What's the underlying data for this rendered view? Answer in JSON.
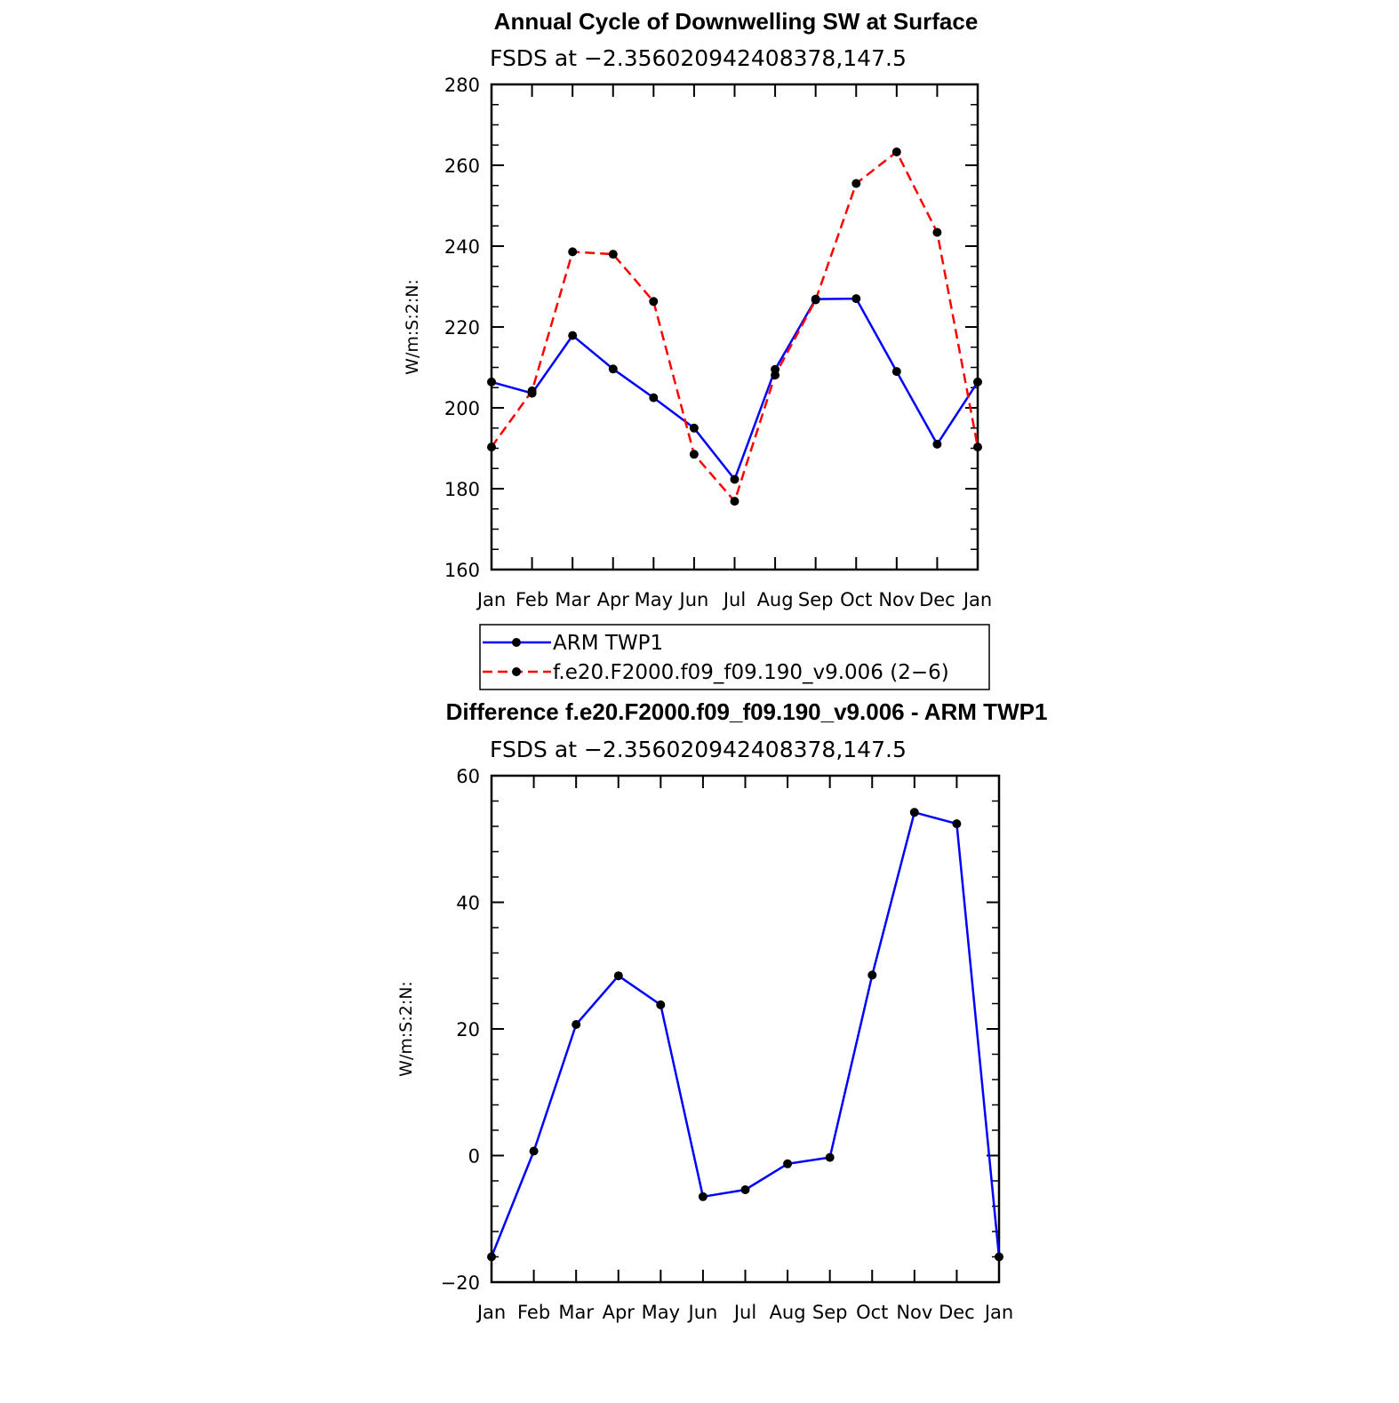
{
  "chart_data": [
    {
      "type": "line",
      "title": "Annual Cycle of Downwelling SW at Surface",
      "subtitle": "FSDS at −2.356020942408378,147.5",
      "ylabel": "W/m:S:2:N:",
      "xlabel": "",
      "categories": [
        "Jan",
        "Feb",
        "Mar",
        "Apr",
        "May",
        "Jun",
        "Jul",
        "Aug",
        "Sep",
        "Oct",
        "Nov",
        "Dec",
        "Jan"
      ],
      "ylim": [
        160,
        280
      ],
      "yticks": [
        "160",
        "180",
        "200",
        "220",
        "240",
        "260",
        "280"
      ],
      "grid": false,
      "legend_placement": "bottom",
      "series": [
        {
          "name": "ARM TWP1",
          "color": "#0000ff",
          "style": "solid",
          "values": [
            206.4,
            203.6,
            217.9,
            209.6,
            202.5,
            195.0,
            182.3,
            209.5,
            226.9,
            227.0,
            209.0,
            191.0,
            206.4
          ]
        },
        {
          "name": "f.e20.F2000.f09_f09.190_v9.006 (2−6)",
          "color": "#ff0000",
          "style": "dashed",
          "values": [
            190.3,
            204.2,
            238.6,
            238.0,
            226.3,
            188.5,
            176.9,
            208.1,
            226.7,
            255.5,
            263.3,
            243.4,
            190.3
          ]
        }
      ]
    },
    {
      "type": "line",
      "title": "Difference f.e20.F2000.f09_f09.190_v9.006 - ARM TWP1",
      "subtitle": "FSDS at −2.356020942408378,147.5",
      "ylabel": "W/m:S:2:N:",
      "xlabel": "",
      "categories": [
        "Jan",
        "Feb",
        "Mar",
        "Apr",
        "May",
        "Jun",
        "Jul",
        "Aug",
        "Sep",
        "Oct",
        "Nov",
        "Dec",
        "Jan"
      ],
      "ylim": [
        -20,
        60
      ],
      "yticks": [
        "−20",
        "0",
        "20",
        "40",
        "60"
      ],
      "grid": false,
      "series": [
        {
          "color": "#0000ff",
          "style": "solid",
          "values": [
            -16.0,
            0.7,
            20.7,
            28.4,
            23.8,
            -6.5,
            -5.4,
            -1.3,
            -0.3,
            28.5,
            54.2,
            52.4,
            -16.0
          ]
        }
      ]
    }
  ]
}
